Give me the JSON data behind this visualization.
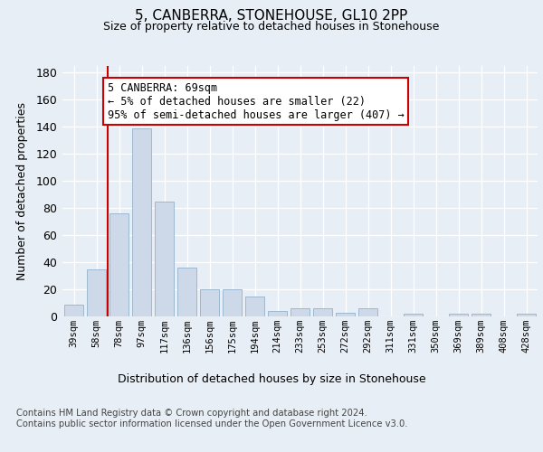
{
  "title": "5, CANBERRA, STONEHOUSE, GL10 2PP",
  "subtitle": "Size of property relative to detached houses in Stonehouse",
  "xlabel": "Distribution of detached houses by size in Stonehouse",
  "ylabel": "Number of detached properties",
  "bar_labels": [
    "39sqm",
    "58sqm",
    "78sqm",
    "97sqm",
    "117sqm",
    "136sqm",
    "156sqm",
    "175sqm",
    "194sqm",
    "214sqm",
    "233sqm",
    "253sqm",
    "272sqm",
    "292sqm",
    "311sqm",
    "331sqm",
    "350sqm",
    "369sqm",
    "389sqm",
    "408sqm",
    "428sqm"
  ],
  "bar_values": [
    9,
    35,
    76,
    139,
    85,
    36,
    20,
    20,
    15,
    4,
    6,
    6,
    3,
    6,
    0,
    2,
    0,
    2,
    2,
    0,
    2
  ],
  "bar_color": "#cdd9e8",
  "bar_edge_color": "#9db8d0",
  "vline_x": 1.5,
  "vline_color": "#cc0000",
  "annotation_text": "5 CANBERRA: 69sqm\n← 5% of detached houses are smaller (22)\n95% of semi-detached houses are larger (407) →",
  "annotation_box_color": "#ffffff",
  "annotation_box_edge": "#cc0000",
  "ylim": [
    0,
    185
  ],
  "yticks": [
    0,
    20,
    40,
    60,
    80,
    100,
    120,
    140,
    160,
    180
  ],
  "footer_text": "Contains HM Land Registry data © Crown copyright and database right 2024.\nContains public sector information licensed under the Open Government Licence v3.0.",
  "bg_color": "#e8eef5",
  "plot_bg_color": "#e8eef5"
}
